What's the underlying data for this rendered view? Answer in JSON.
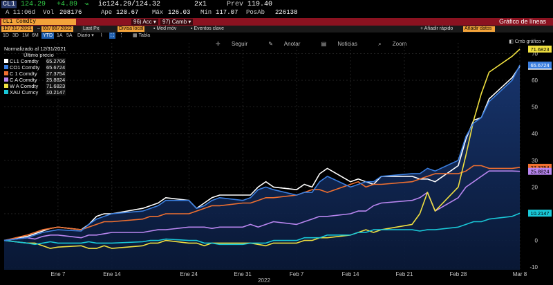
{
  "quote": {
    "ticker": "CL1",
    "last": "124.29",
    "change": "+4.89",
    "bidask": "ic124.29/124.32",
    "size": "2x1",
    "prev_label": "Prev",
    "prev": "119.40",
    "time": "A 11:06d",
    "vol_label": "Vol",
    "vol": "208176",
    "open_label": "Ape",
    "open": "120.67",
    "high_label": "Máx",
    "high": "126.03",
    "low_label": "Mín",
    "low": "117.07",
    "oi_label": "PosAb",
    "oi": "226138"
  },
  "cmdbar": {
    "security": "CL1 Comdty",
    "actions_btn": "Acc",
    "switch_btn": "Camb",
    "title": "Gráfico de líneas"
  },
  "controls": {
    "start_date": "12/31/2021",
    "end_date": "03/08/2022",
    "field": "Last Px",
    "currency": "Divisa local",
    "moving_avg": "Med móv",
    "key_events": "Eventos clave",
    "add_quick": "Añadir rápido",
    "add_data": "Añadir datos"
  },
  "periods": [
    "1D",
    "3D",
    "1M",
    "6M",
    "YTD",
    "1A",
    "5A",
    "Diario"
  ],
  "period_selected": "YTD",
  "table_label": "Tabla",
  "toolbar": {
    "follow": "Seguir",
    "annotate": "Anotar",
    "news": "Noticias",
    "zoom": "Zoom",
    "chart_type": "Cmb gráfico"
  },
  "legend": {
    "header1": "Normalizado al 12/31/2021",
    "header2": "Último precio"
  },
  "year_label": "2022",
  "chart_data": {
    "type": "line",
    "x": [
      "2021-12-31",
      "2022-01-03",
      "2022-01-04",
      "2022-01-05",
      "2022-01-06",
      "2022-01-07",
      "2022-01-10",
      "2022-01-11",
      "2022-01-12",
      "2022-01-13",
      "2022-01-14",
      "2022-01-18",
      "2022-01-19",
      "2022-01-20",
      "2022-01-21",
      "2022-01-24",
      "2022-01-25",
      "2022-01-26",
      "2022-01-27",
      "2022-01-28",
      "2022-01-31",
      "2022-02-01",
      "2022-02-02",
      "2022-02-03",
      "2022-02-04",
      "2022-02-07",
      "2022-02-08",
      "2022-02-09",
      "2022-02-10",
      "2022-02-11",
      "2022-02-14",
      "2022-02-15",
      "2022-02-16",
      "2022-02-17",
      "2022-02-18",
      "2022-02-22",
      "2022-02-23",
      "2022-02-24",
      "2022-02-25",
      "2022-02-28",
      "2022-03-01",
      "2022-03-02",
      "2022-03-03",
      "2022-03-04",
      "2022-03-07",
      "2022-03-08"
    ],
    "x_ticks": [
      "Ene 7",
      "Ene 14",
      "Ene 24",
      "Ene 31",
      "Feb 7",
      "Feb 14",
      "Feb 21",
      "Feb 28",
      "Mar 8"
    ],
    "y_ticks": [
      -10,
      0,
      10,
      20,
      30,
      40,
      50,
      60,
      70
    ],
    "ylim": [
      -11,
      74
    ],
    "series": [
      {
        "name": "CL1 Comdty",
        "color": "#ffffff",
        "last": "65.2706",
        "values": [
          0,
          1.5,
          2.5,
          3.5,
          4.5,
          5,
          4,
          6,
          9,
          10,
          10,
          12,
          13,
          14,
          16,
          15,
          12,
          14,
          16,
          17,
          17,
          17,
          20,
          22,
          20,
          19,
          21,
          20,
          25,
          27,
          22,
          23,
          22,
          21,
          24,
          24,
          23,
          23,
          22,
          28,
          38,
          45,
          46,
          53,
          61,
          65.27
        ]
      },
      {
        "name": "CO1 Comdty",
        "color": "#3b7fe0",
        "last": "65.6724",
        "values": [
          0,
          1,
          2,
          3,
          3.5,
          4,
          3.5,
          6,
          8,
          9,
          10,
          11,
          12,
          13,
          15,
          15,
          12,
          13,
          15,
          16,
          15,
          16,
          19,
          20,
          19,
          17,
          18,
          18,
          22,
          24,
          20,
          21,
          22,
          22,
          24,
          25,
          25,
          27,
          26,
          30,
          39,
          44,
          46,
          52,
          60,
          65.67
        ]
      },
      {
        "name": "C 1 Comdty",
        "color": "#f07030",
        "last": "27.3754",
        "values": [
          0,
          2,
          3,
          4,
          4.5,
          5,
          4,
          5,
          6,
          7,
          7,
          8,
          9,
          9,
          10,
          10,
          11,
          12,
          13,
          13,
          14,
          14,
          15,
          16,
          16,
          17,
          18,
          19,
          19,
          18,
          21,
          22,
          20,
          21,
          21,
          22,
          23,
          24,
          25,
          25,
          26,
          28,
          28,
          27,
          27,
          27.38
        ]
      },
      {
        "name": "C A Comdty",
        "color": "#b986f0",
        "last": "25.8824",
        "values": [
          0,
          1,
          0.5,
          1.5,
          2,
          2,
          1,
          2,
          2,
          2.5,
          3,
          3,
          3.5,
          4,
          4,
          5,
          5,
          5,
          4.5,
          5,
          5,
          6,
          5,
          6,
          7,
          6,
          7,
          8,
          9,
          9,
          10,
          11,
          11,
          13,
          14,
          15,
          16,
          18,
          11,
          16,
          20,
          22,
          24,
          26,
          26,
          25.88
        ]
      },
      {
        "name": "W A Comdty",
        "color": "#f0e040",
        "last": "71.6823",
        "values": [
          0,
          -1,
          -1,
          -2,
          -3,
          -2.5,
          -2,
          -3,
          -3,
          -2,
          -3,
          -2,
          -1,
          -1,
          0,
          -1,
          -1,
          -2,
          -1,
          -1,
          -1,
          -1,
          -1.5,
          -2,
          -1,
          -1,
          0,
          0,
          1,
          1,
          2,
          3,
          4,
          3,
          4,
          6,
          10,
          18,
          11,
          20,
          32,
          45,
          55,
          63,
          69,
          71.68
        ]
      },
      {
        "name": "XAU Curncy",
        "color": "#19c8d8",
        "last": "10.2147",
        "values": [
          0,
          -1,
          -1.5,
          -1,
          -0.5,
          -1,
          -1,
          -0.5,
          -1,
          -1,
          -1,
          -0.5,
          0,
          0,
          0.5,
          0,
          0,
          -1,
          -1,
          -1.5,
          -1.5,
          -1,
          -1,
          -1,
          0,
          0,
          1,
          1,
          1,
          2,
          2,
          3,
          3,
          4,
          4,
          4,
          3.5,
          4,
          4,
          5,
          6,
          7,
          7,
          8,
          9,
          10.21
        ]
      }
    ]
  }
}
